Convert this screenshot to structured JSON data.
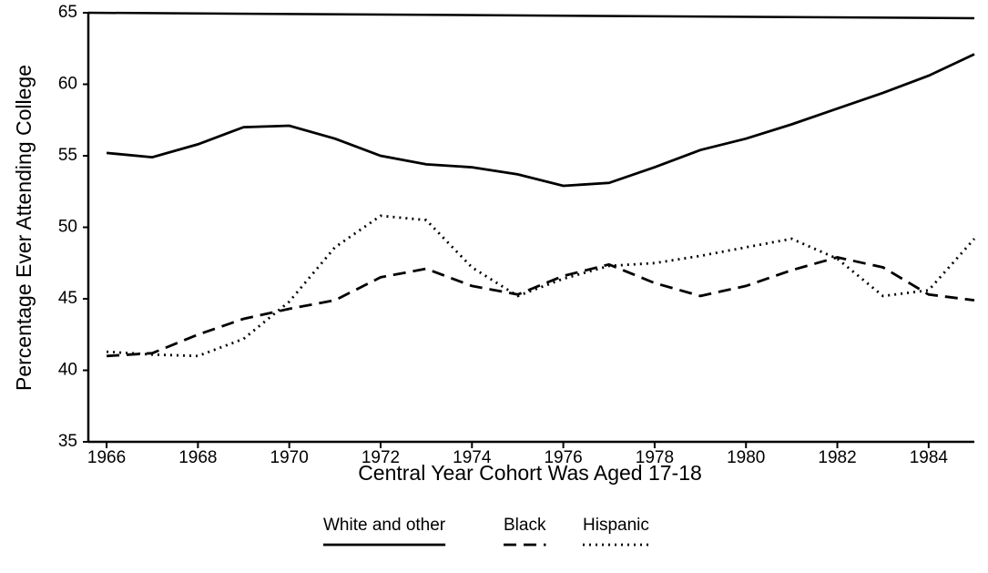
{
  "chart_data": {
    "type": "line",
    "x_label": "Central Year Cohort Was Aged 17-18",
    "y_label": "Percentage Ever Attending College",
    "x": [
      1966,
      1967,
      1968,
      1969,
      1970,
      1971,
      1972,
      1973,
      1974,
      1975,
      1976,
      1977,
      1978,
      1979,
      1980,
      1981,
      1982,
      1983,
      1984,
      1985
    ],
    "series": [
      {
        "name": "White and other",
        "color": "#000000",
        "dash": "solid",
        "values": [
          55.2,
          54.9,
          55.8,
          57.0,
          57.1,
          56.2,
          55.0,
          54.4,
          54.2,
          53.7,
          52.9,
          53.1,
          54.2,
          55.4,
          56.2,
          57.2,
          58.3,
          59.4,
          60.6,
          62.1
        ]
      },
      {
        "name": "Black",
        "color": "#000000",
        "dash": "dashed",
        "values": [
          41.0,
          41.2,
          42.5,
          43.6,
          44.3,
          44.9,
          46.5,
          47.1,
          45.9,
          45.3,
          46.6,
          47.4,
          46.1,
          45.2,
          45.9,
          47.0,
          47.9,
          47.2,
          45.3,
          44.9
        ]
      },
      {
        "name": "Hispanic",
        "color": "#000000",
        "dash": "dotted",
        "values": [
          41.3,
          41.1,
          41.0,
          42.2,
          44.8,
          48.6,
          50.8,
          50.5,
          47.2,
          45.2,
          46.4,
          47.3,
          47.5,
          48.0,
          48.6,
          49.2,
          47.8,
          45.2,
          45.6,
          49.2
        ]
      }
    ],
    "xlim": [
      1965.6,
      1985
    ],
    "xticks": [
      1966,
      1968,
      1970,
      1972,
      1974,
      1976,
      1978,
      1980,
      1982,
      1984
    ],
    "ylim": [
      35,
      65
    ],
    "yticks": [
      35,
      40,
      45,
      50,
      55,
      60,
      65
    ],
    "legend": "bottom"
  }
}
